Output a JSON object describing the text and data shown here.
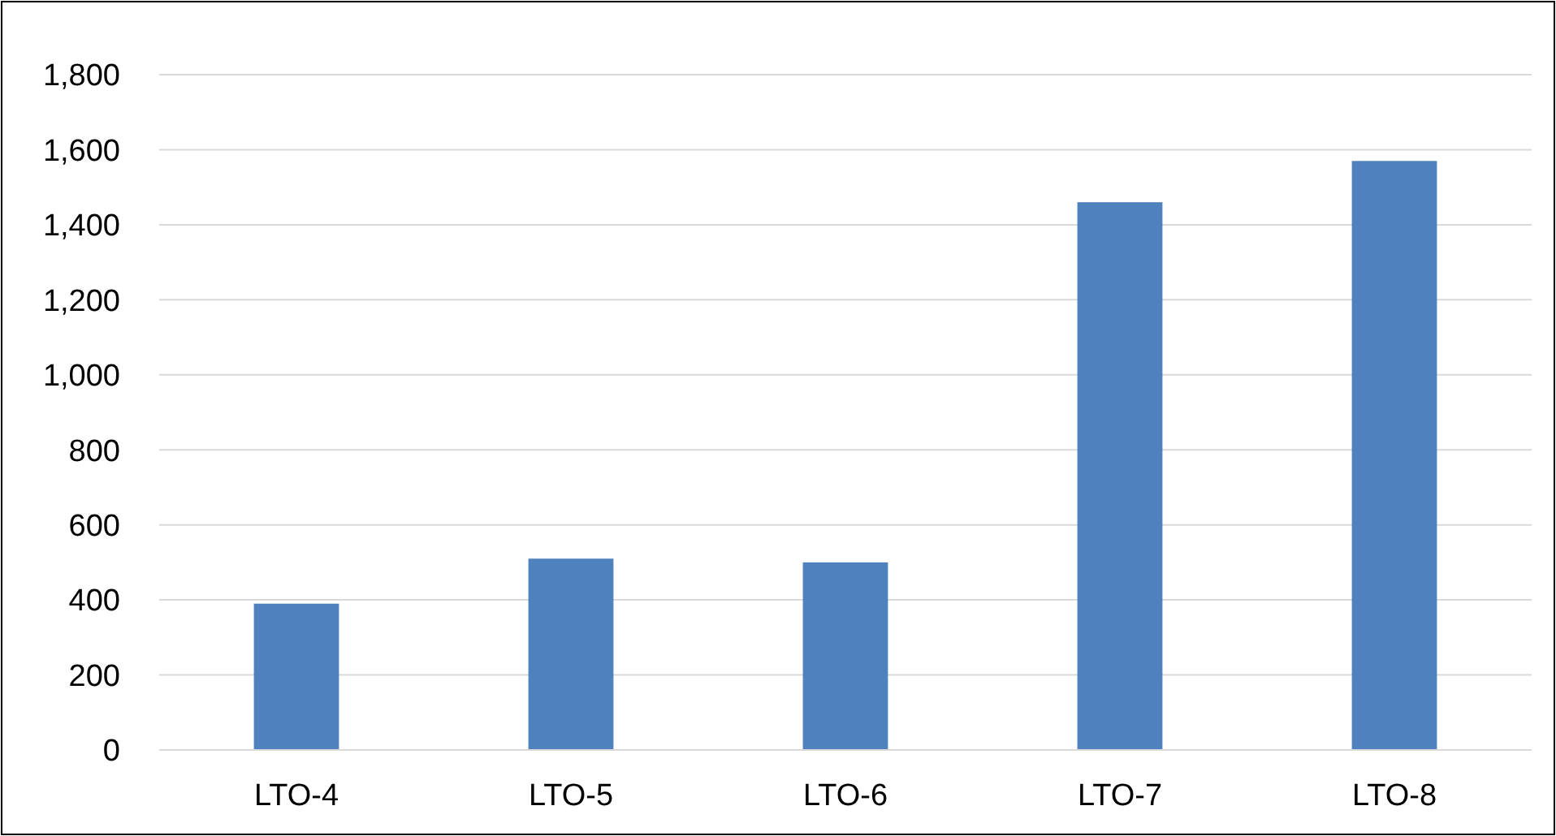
{
  "chart_data": {
    "type": "bar",
    "categories": [
      "LTO-4",
      "LTO-5",
      "LTO-6",
      "LTO-7",
      "LTO-8"
    ],
    "values": [
      390,
      510,
      500,
      1460,
      1570
    ],
    "color": "#4f81bd",
    "ylim": [
      0,
      1800
    ],
    "yticks": [
      {
        "value": 0,
        "label": "0"
      },
      {
        "value": 200,
        "label": "200"
      },
      {
        "value": 400,
        "label": "400"
      },
      {
        "value": 600,
        "label": "600"
      },
      {
        "value": 800,
        "label": "800"
      },
      {
        "value": 1000,
        "label": "1,000"
      },
      {
        "value": 1200,
        "label": "1,200"
      },
      {
        "value": 1400,
        "label": "1,400"
      },
      {
        "value": 1600,
        "label": "1,600"
      },
      {
        "value": 1800,
        "label": "1,800"
      }
    ],
    "grid": true
  }
}
